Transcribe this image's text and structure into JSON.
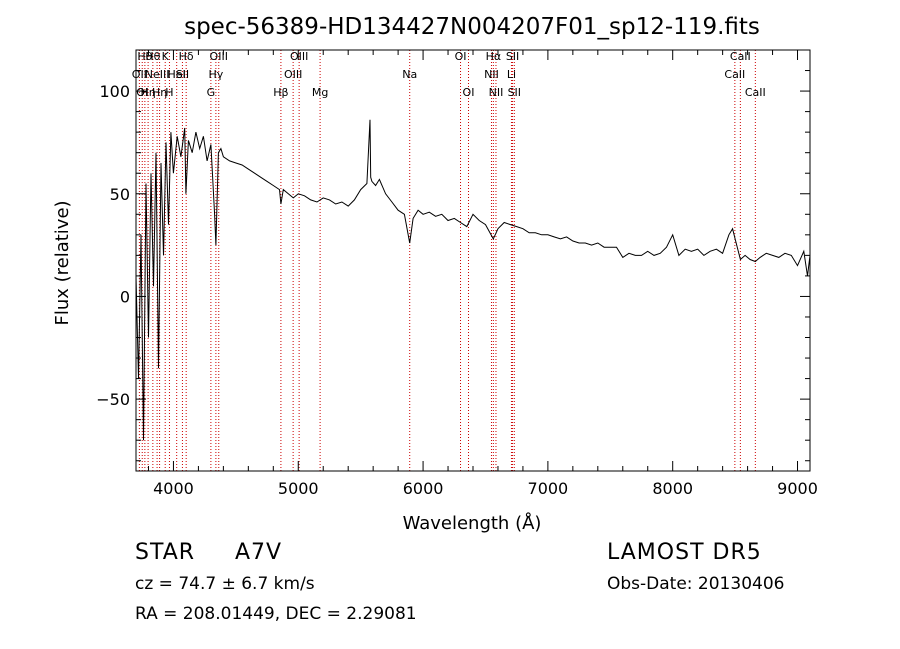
{
  "chart_data": {
    "type": "line",
    "title": "spec-56389-HD134427N004207F01_sp12-119.fits",
    "xlabel": "Wavelength (Å)",
    "ylabel": "Flux (relative)",
    "xlim": [
      3700,
      9100
    ],
    "ylim": [
      -85,
      120
    ],
    "xticks": [
      4000,
      5000,
      6000,
      7000,
      8000,
      9000
    ],
    "yticks": [
      -50,
      0,
      50,
      100
    ],
    "line_color": "#000000",
    "marker_color": "#cc0000",
    "series": [
      {
        "x": [
          3700,
          3720,
          3740,
          3760,
          3780,
          3800,
          3820,
          3840,
          3860,
          3880,
          3900,
          3920,
          3940,
          3960,
          3980,
          4000,
          4030,
          4060,
          4090,
          4100,
          4120,
          4150,
          4180,
          4210,
          4240,
          4270,
          4300,
          4330,
          4340,
          4360,
          4380,
          4400,
          4450,
          4500,
          4550,
          4600,
          4650,
          4700,
          4750,
          4800,
          4850,
          4861,
          4880,
          4920,
          4960,
          5000,
          5050,
          5100,
          5150,
          5200,
          5250,
          5300,
          5350,
          5400,
          5450,
          5500,
          5550,
          5575,
          5580,
          5590,
          5620,
          5650,
          5700,
          5750,
          5800,
          5850,
          5893,
          5920,
          5960,
          6000,
          6050,
          6100,
          6150,
          6200,
          6250,
          6300,
          6350,
          6400,
          6450,
          6500,
          6563,
          6600,
          6650,
          6700,
          6750,
          6800,
          6850,
          6900,
          6950,
          7000,
          7050,
          7100,
          7150,
          7200,
          7250,
          7300,
          7350,
          7400,
          7450,
          7500,
          7550,
          7600,
          7650,
          7700,
          7750,
          7800,
          7850,
          7900,
          7950,
          8000,
          8050,
          8100,
          8150,
          8200,
          8250,
          8300,
          8350,
          8400,
          8450,
          8480,
          8500,
          8542,
          8580,
          8620,
          8662,
          8700,
          8750,
          8800,
          8850,
          8900,
          8950,
          9000,
          9050,
          9080,
          9100
        ],
        "y": [
          10,
          -40,
          30,
          -70,
          55,
          -20,
          60,
          5,
          70,
          -35,
          65,
          20,
          75,
          35,
          80,
          60,
          78,
          68,
          82,
          50,
          76,
          70,
          80,
          72,
          78,
          66,
          74,
          40,
          25,
          70,
          72,
          68,
          66,
          65,
          64,
          62,
          60,
          58,
          56,
          54,
          52,
          45,
          52,
          50,
          48,
          50,
          49,
          47,
          46,
          48,
          47,
          45,
          46,
          44,
          47,
          52,
          55,
          86,
          58,
          56,
          54,
          57,
          50,
          46,
          42,
          40,
          26,
          38,
          42,
          40,
          41,
          39,
          40,
          37,
          38,
          36,
          34,
          40,
          37,
          35,
          28,
          33,
          36,
          35,
          34,
          33,
          31,
          31,
          30,
          30,
          29,
          28,
          29,
          27,
          26,
          26,
          25,
          26,
          24,
          24,
          24,
          19,
          21,
          20,
          20,
          22,
          20,
          21,
          24,
          30,
          20,
          23,
          22,
          23,
          20,
          22,
          23,
          21,
          30,
          33,
          28,
          18,
          20,
          18,
          17,
          19,
          21,
          20,
          19,
          21,
          20,
          15,
          22,
          10,
          20
        ]
      }
    ],
    "lines": [
      {
        "x": 3727,
        "row": 1,
        "label": "OII"
      },
      {
        "x": 3750,
        "row": 2,
        "label": "OI"
      },
      {
        "x": 3771,
        "row": 0,
        "label": "Hθ"
      },
      {
        "x": 3797,
        "row": 2,
        "label": "Hη"
      },
      {
        "x": 3835,
        "row": 0,
        "label": "Hθ"
      },
      {
        "x": 3869,
        "row": 1,
        "label": "NeIII"
      },
      {
        "x": 3889,
        "row": 2,
        "label": "Hη"
      },
      {
        "x": 3934,
        "row": 0,
        "label": "K"
      },
      {
        "x": 3968,
        "row": 2,
        "label": "H"
      },
      {
        "x": 4026,
        "row": 1,
        "label": "HeI"
      },
      {
        "x": 4072,
        "row": 1,
        "label": "SII"
      },
      {
        "x": 4102,
        "row": 0,
        "label": "Hδ"
      },
      {
        "x": 4300,
        "row": 2,
        "label": "G"
      },
      {
        "x": 4340,
        "row": 1,
        "label": "Hγ"
      },
      {
        "x": 4363,
        "row": 0,
        "label": "OIII"
      },
      {
        "x": 4861,
        "row": 2,
        "label": "Hβ"
      },
      {
        "x": 4959,
        "row": 1,
        "label": "OIII"
      },
      {
        "x": 5007,
        "row": 0,
        "label": "OIII"
      },
      {
        "x": 5175,
        "row": 2,
        "label": "Mg"
      },
      {
        "x": 5893,
        "row": 1,
        "label": "Na"
      },
      {
        "x": 6300,
        "row": 0,
        "label": "OI"
      },
      {
        "x": 6364,
        "row": 2,
        "label": "OI"
      },
      {
        "x": 6548,
        "row": 1,
        "label": "NII"
      },
      {
        "x": 6563,
        "row": 0,
        "label": "Hα"
      },
      {
        "x": 6584,
        "row": 2,
        "label": "NII"
      },
      {
        "x": 6708,
        "row": 1,
        "label": "Li"
      },
      {
        "x": 6717,
        "row": 0,
        "label": "SII"
      },
      {
        "x": 6731,
        "row": 2,
        "label": "SII"
      },
      {
        "x": 8498,
        "row": 1,
        "label": "CaII"
      },
      {
        "x": 8542,
        "row": 0,
        "label": "CaII"
      },
      {
        "x": 8662,
        "row": 2,
        "label": "CaII"
      }
    ]
  },
  "info": {
    "object_class": "STAR",
    "subclass": "A7V",
    "survey": "LAMOST DR5",
    "cz": "cz = 74.7 ± 6.7 km/s",
    "obs_date": "Obs-Date: 20130406",
    "coords": "RA = 208.01449, DEC =   2.29081"
  }
}
